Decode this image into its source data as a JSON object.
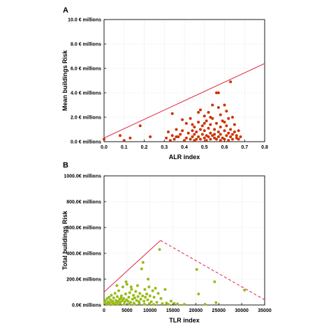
{
  "chart_data": [
    {
      "panel": "A",
      "type": "scatter",
      "xlabel": "ALR index",
      "ylabel": "Mean buildings Risk",
      "xlim": [
        0,
        0.8
      ],
      "ylim": [
        0,
        10
      ],
      "xticks": [
        0.0,
        0.1,
        0.2,
        0.3,
        0.4,
        0.5,
        0.6,
        0.7,
        0.8
      ],
      "xtick_labels": [
        "0.0",
        "0.1",
        "0.2",
        "0.3",
        "0.4",
        "0.5",
        "0.6",
        "0.7",
        "0.8"
      ],
      "yticks": [
        0,
        2,
        4,
        6,
        8,
        10
      ],
      "ytick_labels": [
        "0.0 € millions",
        "2.0 € millions",
        "4.0 € millions",
        "6.0 € millions",
        "8.0 € millions",
        "10.0 € millions"
      ],
      "grid": true,
      "point_color": "#cc3300",
      "line_color": "#e0334f",
      "lines": [
        {
          "style": "solid",
          "x": [
            0.0,
            0.8
          ],
          "y": [
            0.3,
            6.4
          ]
        }
      ],
      "points": [
        [
          0.0,
          0.2
        ],
        [
          0.08,
          0.5
        ],
        [
          0.1,
          0.1
        ],
        [
          0.13,
          0.3
        ],
        [
          0.18,
          1.3
        ],
        [
          0.23,
          0.4
        ],
        [
          0.31,
          0.3
        ],
        [
          0.32,
          0.8
        ],
        [
          0.33,
          0.1
        ],
        [
          0.34,
          0.5
        ],
        [
          0.35,
          0.2
        ],
        [
          0.36,
          1.0
        ],
        [
          0.37,
          0.4
        ],
        [
          0.38,
          0.6
        ],
        [
          0.39,
          1.8
        ],
        [
          0.4,
          0.1
        ],
        [
          0.41,
          1.5
        ],
        [
          0.41,
          0.3
        ],
        [
          0.42,
          0.7
        ],
        [
          0.43,
          0.2
        ],
        [
          0.43,
          1.9
        ],
        [
          0.44,
          0.9
        ],
        [
          0.44,
          0.4
        ],
        [
          0.45,
          0.6
        ],
        [
          0.45,
          1.2
        ],
        [
          0.46,
          0.2
        ],
        [
          0.46,
          0.8
        ],
        [
          0.47,
          1.6
        ],
        [
          0.47,
          0.4
        ],
        [
          0.48,
          1.0
        ],
        [
          0.48,
          0.2
        ],
        [
          0.48,
          2.6
        ],
        [
          0.49,
          0.6
        ],
        [
          0.49,
          1.3
        ],
        [
          0.5,
          0.3
        ],
        [
          0.5,
          0.9
        ],
        [
          0.5,
          2.1
        ],
        [
          0.51,
          0.5
        ],
        [
          0.51,
          1.7
        ],
        [
          0.51,
          0.1
        ],
        [
          0.52,
          1.1
        ],
        [
          0.52,
          0.4
        ],
        [
          0.52,
          2.4
        ],
        [
          0.53,
          0.7
        ],
        [
          0.53,
          0.2
        ],
        [
          0.53,
          1.4
        ],
        [
          0.54,
          0.5
        ],
        [
          0.54,
          1.9
        ],
        [
          0.54,
          3.0
        ],
        [
          0.55,
          0.3
        ],
        [
          0.55,
          1.0
        ],
        [
          0.55,
          0.6
        ],
        [
          0.56,
          4.0
        ],
        [
          0.56,
          1.5
        ],
        [
          0.56,
          0.2
        ],
        [
          0.57,
          2.8
        ],
        [
          0.57,
          0.8
        ],
        [
          0.57,
          0.4
        ],
        [
          0.57,
          4.0
        ],
        [
          0.58,
          1.2
        ],
        [
          0.58,
          0.6
        ],
        [
          0.58,
          2.2
        ],
        [
          0.59,
          0.3
        ],
        [
          0.59,
          1.7
        ],
        [
          0.6,
          0.9
        ],
        [
          0.6,
          0.2
        ],
        [
          0.6,
          3.0
        ],
        [
          0.61,
          0.5
        ],
        [
          0.61,
          1.3
        ],
        [
          0.61,
          2.5
        ],
        [
          0.62,
          0.7
        ],
        [
          0.62,
          0.1
        ],
        [
          0.62,
          1.9
        ],
        [
          0.63,
          0.4
        ],
        [
          0.63,
          4.9
        ],
        [
          0.63,
          1.0
        ],
        [
          0.64,
          0.6
        ],
        [
          0.64,
          2.0
        ],
        [
          0.64,
          0.2
        ],
        [
          0.65,
          1.4
        ],
        [
          0.65,
          0.8
        ],
        [
          0.66,
          0.3
        ],
        [
          0.66,
          0.5
        ],
        [
          0.67,
          0.9
        ],
        [
          0.67,
          0.2
        ],
        [
          0.68,
          0.4
        ],
        [
          0.34,
          2.3
        ],
        [
          0.39,
          0.9
        ],
        [
          0.47,
          2.4
        ],
        [
          0.53,
          2.0
        ],
        [
          0.45,
          0.1
        ],
        [
          0.5,
          1.5
        ],
        [
          0.58,
          0.1
        ],
        [
          0.44,
          1.4
        ],
        [
          0.36,
          0.4
        ],
        [
          0.6,
          1.6
        ]
      ]
    },
    {
      "panel": "B",
      "type": "scatter",
      "xlabel": "TLR index",
      "ylabel": "Total buildings Risk",
      "xlim": [
        0,
        35000
      ],
      "ylim": [
        0,
        1000
      ],
      "xticks": [
        0,
        5000,
        10000,
        15000,
        20000,
        25000,
        30000,
        35000
      ],
      "xtick_labels": [
        "0",
        "5000",
        "10000",
        "15000",
        "20000",
        "25000",
        "30000",
        "35000"
      ],
      "yticks": [
        0,
        200,
        400,
        600,
        800,
        1000
      ],
      "ytick_labels": [
        "0.0€ millions",
        "200.0€ millions",
        "400.0€ millions",
        "600.0€ millions",
        "800.0€ millions",
        "1000.0€ millions"
      ],
      "grid": true,
      "point_color": "#99bb1a",
      "line_color": "#e0334f",
      "lines": [
        {
          "style": "solid",
          "x": [
            0,
            12300
          ],
          "y": [
            100,
            500
          ]
        },
        {
          "style": "dashed",
          "x": [
            12300,
            35000
          ],
          "y": [
            500,
            40
          ]
        }
      ],
      "points": [
        [
          150,
          20
        ],
        [
          300,
          35
        ],
        [
          500,
          10
        ],
        [
          700,
          50
        ],
        [
          900,
          25
        ],
        [
          1100,
          60
        ],
        [
          1200,
          15
        ],
        [
          1400,
          40
        ],
        [
          1600,
          75
        ],
        [
          1700,
          20
        ],
        [
          1900,
          30
        ],
        [
          2100,
          55
        ],
        [
          2200,
          12
        ],
        [
          2400,
          90
        ],
        [
          2600,
          35
        ],
        [
          2700,
          18
        ],
        [
          2900,
          65
        ],
        [
          3100,
          28
        ],
        [
          3200,
          110
        ],
        [
          3400,
          45
        ],
        [
          3600,
          22
        ],
        [
          3800,
          70
        ],
        [
          4000,
          35
        ],
        [
          4100,
          140
        ],
        [
          4300,
          50
        ],
        [
          4500,
          25
        ],
        [
          4700,
          85
        ],
        [
          4900,
          40
        ],
        [
          5000,
          160
        ],
        [
          5200,
          30
        ],
        [
          5400,
          60
        ],
        [
          5600,
          95
        ],
        [
          5800,
          20
        ],
        [
          6000,
          120
        ],
        [
          6200,
          45
        ],
        [
          6400,
          75
        ],
        [
          6500,
          15
        ],
        [
          6700,
          55
        ],
        [
          6900,
          105
        ],
        [
          7100,
          35
        ],
        [
          7300,
          150
        ],
        [
          7400,
          65
        ],
        [
          7600,
          25
        ],
        [
          7800,
          90
        ],
        [
          8000,
          45
        ],
        [
          8200,
          280
        ],
        [
          8400,
          70
        ],
        [
          8500,
          330
        ],
        [
          8700,
          30
        ],
        [
          8900,
          120
        ],
        [
          9000,
          60
        ],
        [
          9300,
          85
        ],
        [
          9500,
          40
        ],
        [
          9800,
          140
        ],
        [
          10000,
          70
        ],
        [
          10300,
          25
        ],
        [
          10600,
          110
        ],
        [
          10900,
          60
        ],
        [
          11200,
          130
        ],
        [
          11500,
          20
        ],
        [
          11800,
          90
        ],
        [
          12100,
          430
        ],
        [
          12400,
          50
        ],
        [
          12700,
          10
        ],
        [
          13300,
          120
        ],
        [
          13600,
          15
        ],
        [
          14000,
          5
        ],
        [
          14600,
          30
        ],
        [
          15300,
          12
        ],
        [
          16000,
          8
        ],
        [
          17500,
          5
        ],
        [
          20200,
          275
        ],
        [
          20600,
          85
        ],
        [
          22000,
          5
        ],
        [
          24100,
          180
        ],
        [
          24400,
          18
        ],
        [
          30600,
          115
        ],
        [
          1000,
          5
        ],
        [
          2000,
          8
        ],
        [
          3000,
          4
        ],
        [
          3500,
          12
        ],
        [
          4400,
          6
        ],
        [
          5500,
          9
        ],
        [
          6600,
          7
        ],
        [
          7700,
          11
        ],
        [
          8800,
          6
        ],
        [
          9900,
          10
        ],
        [
          10800,
          4
        ],
        [
          4800,
          180
        ],
        [
          5900,
          140
        ],
        [
          2800,
          150
        ],
        [
          3700,
          55
        ],
        [
          9600,
          200
        ]
      ]
    }
  ]
}
